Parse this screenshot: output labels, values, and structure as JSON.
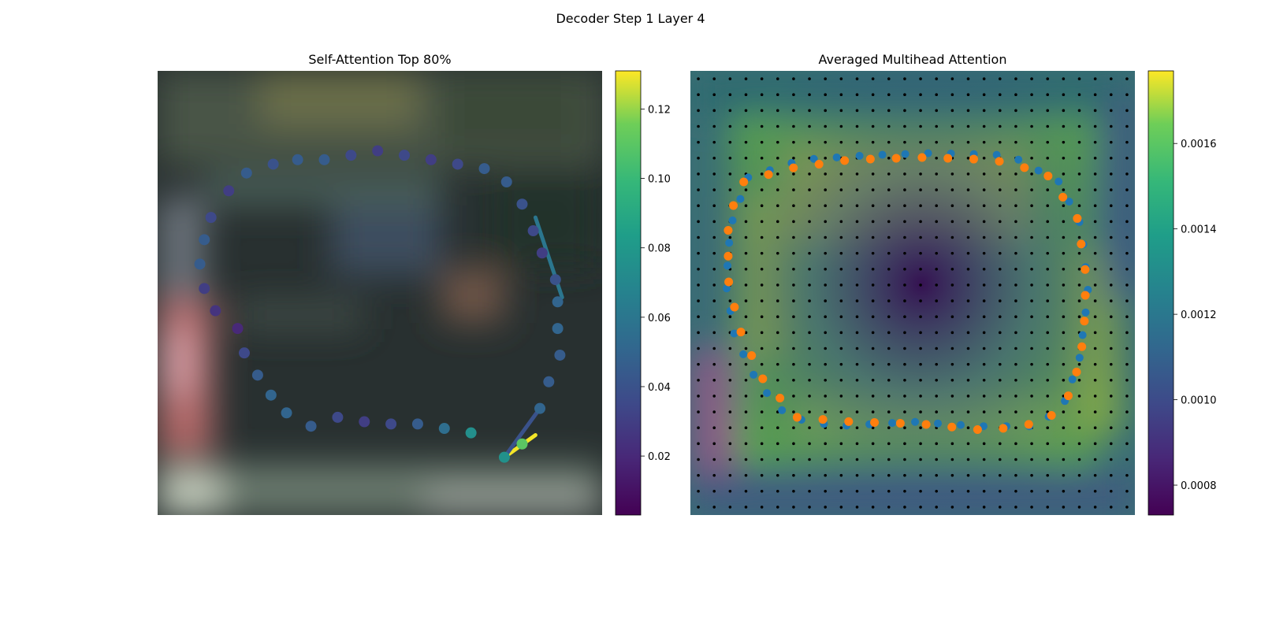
{
  "figure": {
    "suptitle": "Decoder Step 1 Layer 4"
  },
  "chart_data": [
    {
      "type": "scatter",
      "title": "Self-Attention Top 80%",
      "background": "blurred photo",
      "colormap": "viridis",
      "colorbar": {
        "ticks": [
          "0.02",
          "0.04",
          "0.06",
          "0.08",
          "0.10",
          "0.12"
        ],
        "range": [
          0.003,
          0.131
        ]
      },
      "attention_lines": [
        {
          "from": [
            0.85,
            0.82
          ],
          "to": [
            0.78,
            0.87
          ],
          "value": 0.13
        },
        {
          "from": [
            0.86,
            0.76
          ],
          "to": [
            0.78,
            0.87
          ],
          "value": 0.04
        },
        {
          "from": [
            0.91,
            0.51
          ],
          "to": [
            0.85,
            0.33
          ],
          "value": 0.06
        }
      ],
      "points": [
        {
          "x": 0.78,
          "y": 0.87,
          "v": 0.076
        },
        {
          "x": 0.82,
          "y": 0.84,
          "v": 0.11
        },
        {
          "x": 0.86,
          "y": 0.76,
          "v": 0.05
        },
        {
          "x": 0.88,
          "y": 0.7,
          "v": 0.045
        },
        {
          "x": 0.905,
          "y": 0.64,
          "v": 0.045
        },
        {
          "x": 0.9,
          "y": 0.58,
          "v": 0.05
        },
        {
          "x": 0.9,
          "y": 0.52,
          "v": 0.05
        },
        {
          "x": 0.895,
          "y": 0.47,
          "v": 0.04
        },
        {
          "x": 0.865,
          "y": 0.41,
          "v": 0.03
        },
        {
          "x": 0.845,
          "y": 0.36,
          "v": 0.035
        },
        {
          "x": 0.82,
          "y": 0.3,
          "v": 0.04
        },
        {
          "x": 0.785,
          "y": 0.25,
          "v": 0.045
        },
        {
          "x": 0.735,
          "y": 0.22,
          "v": 0.045
        },
        {
          "x": 0.675,
          "y": 0.21,
          "v": 0.035
        },
        {
          "x": 0.615,
          "y": 0.2,
          "v": 0.03
        },
        {
          "x": 0.555,
          "y": 0.19,
          "v": 0.035
        },
        {
          "x": 0.495,
          "y": 0.18,
          "v": 0.03
        },
        {
          "x": 0.435,
          "y": 0.19,
          "v": 0.035
        },
        {
          "x": 0.375,
          "y": 0.2,
          "v": 0.045
        },
        {
          "x": 0.315,
          "y": 0.2,
          "v": 0.045
        },
        {
          "x": 0.26,
          "y": 0.21,
          "v": 0.04
        },
        {
          "x": 0.2,
          "y": 0.23,
          "v": 0.045
        },
        {
          "x": 0.16,
          "y": 0.27,
          "v": 0.03
        },
        {
          "x": 0.12,
          "y": 0.33,
          "v": 0.035
        },
        {
          "x": 0.105,
          "y": 0.38,
          "v": 0.045
        },
        {
          "x": 0.095,
          "y": 0.435,
          "v": 0.045
        },
        {
          "x": 0.105,
          "y": 0.49,
          "v": 0.03
        },
        {
          "x": 0.13,
          "y": 0.54,
          "v": 0.025
        },
        {
          "x": 0.18,
          "y": 0.58,
          "v": 0.02
        },
        {
          "x": 0.195,
          "y": 0.635,
          "v": 0.035
        },
        {
          "x": 0.225,
          "y": 0.685,
          "v": 0.045
        },
        {
          "x": 0.255,
          "y": 0.73,
          "v": 0.05
        },
        {
          "x": 0.29,
          "y": 0.77,
          "v": 0.05
        },
        {
          "x": 0.345,
          "y": 0.8,
          "v": 0.045
        },
        {
          "x": 0.405,
          "y": 0.78,
          "v": 0.035
        },
        {
          "x": 0.465,
          "y": 0.79,
          "v": 0.03
        },
        {
          "x": 0.525,
          "y": 0.795,
          "v": 0.035
        },
        {
          "x": 0.585,
          "y": 0.795,
          "v": 0.045
        },
        {
          "x": 0.645,
          "y": 0.805,
          "v": 0.055
        },
        {
          "x": 0.705,
          "y": 0.815,
          "v": 0.075
        }
      ]
    },
    {
      "type": "heatmap",
      "title": "Averaged Multihead Attention",
      "colormap": "viridis",
      "colorbar": {
        "ticks": [
          "0.0008",
          "0.0010",
          "0.0012",
          "0.0014",
          "0.0016"
        ],
        "range": [
          0.00073,
          0.00177
        ]
      },
      "grid": {
        "cols": 28,
        "rows": 28
      },
      "contour_blue": [
        [
          0.13,
          0.24
        ],
        [
          0.09,
          0.35
        ],
        [
          0.08,
          0.48
        ],
        [
          0.1,
          0.6
        ],
        [
          0.15,
          0.7
        ],
        [
          0.22,
          0.78
        ],
        [
          0.33,
          0.8
        ],
        [
          0.5,
          0.79
        ],
        [
          0.65,
          0.8
        ],
        [
          0.78,
          0.8
        ],
        [
          0.84,
          0.75
        ],
        [
          0.875,
          0.65
        ],
        [
          0.895,
          0.5
        ],
        [
          0.88,
          0.35
        ],
        [
          0.83,
          0.25
        ],
        [
          0.72,
          0.19
        ],
        [
          0.55,
          0.185
        ],
        [
          0.4,
          0.19
        ],
        [
          0.25,
          0.2
        ]
      ],
      "contour_orange": [
        [
          0.12,
          0.25
        ],
        [
          0.085,
          0.33
        ],
        [
          0.085,
          0.47
        ],
        [
          0.11,
          0.58
        ],
        [
          0.16,
          0.69
        ],
        [
          0.24,
          0.78
        ],
        [
          0.36,
          0.79
        ],
        [
          0.52,
          0.795
        ],
        [
          0.67,
          0.81
        ],
        [
          0.8,
          0.79
        ],
        [
          0.86,
          0.72
        ],
        [
          0.885,
          0.6
        ],
        [
          0.89,
          0.46
        ],
        [
          0.87,
          0.33
        ],
        [
          0.8,
          0.23
        ],
        [
          0.68,
          0.2
        ],
        [
          0.52,
          0.195
        ],
        [
          0.36,
          0.2
        ],
        [
          0.22,
          0.22
        ]
      ]
    }
  ]
}
